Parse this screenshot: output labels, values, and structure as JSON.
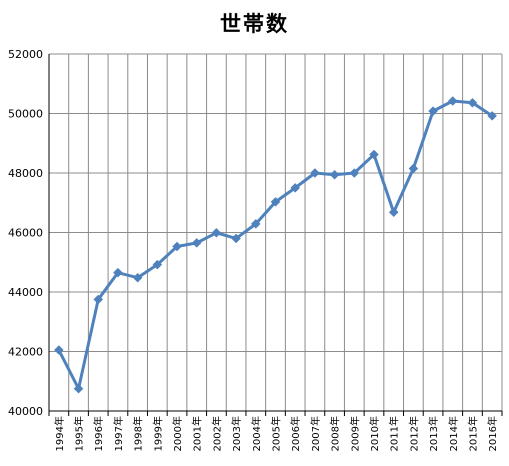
{
  "chart_data": {
    "type": "line",
    "title": "世帯数",
    "xlabel": "",
    "ylabel": "",
    "ylim": [
      40000,
      52000
    ],
    "yticks": [
      40000,
      42000,
      44000,
      46000,
      48000,
      50000,
      52000
    ],
    "grid": true,
    "categories": [
      "1994年",
      "1995年",
      "1996年",
      "1997年",
      "1998年",
      "1999年",
      "2000年",
      "2001年",
      "2002年",
      "2003年",
      "2004年",
      "2005年",
      "2006年",
      "2007年",
      "2008年",
      "2009年",
      "2010年",
      "2011年",
      "2012年",
      "2013年",
      "2014年",
      "2015年",
      "2016年"
    ],
    "series": [
      {
        "values": [
          42050,
          40750,
          43750,
          44650,
          44480,
          44920,
          45530,
          45650,
          45990,
          45800,
          46290,
          47030,
          47500,
          48000,
          47940,
          48000,
          48620,
          46680,
          48150,
          50080,
          50420,
          50360,
          49920
        ]
      }
    ],
    "colors": {
      "line": "#4f81bd",
      "grid": "#8c8c8c",
      "axis": "#000000"
    }
  }
}
